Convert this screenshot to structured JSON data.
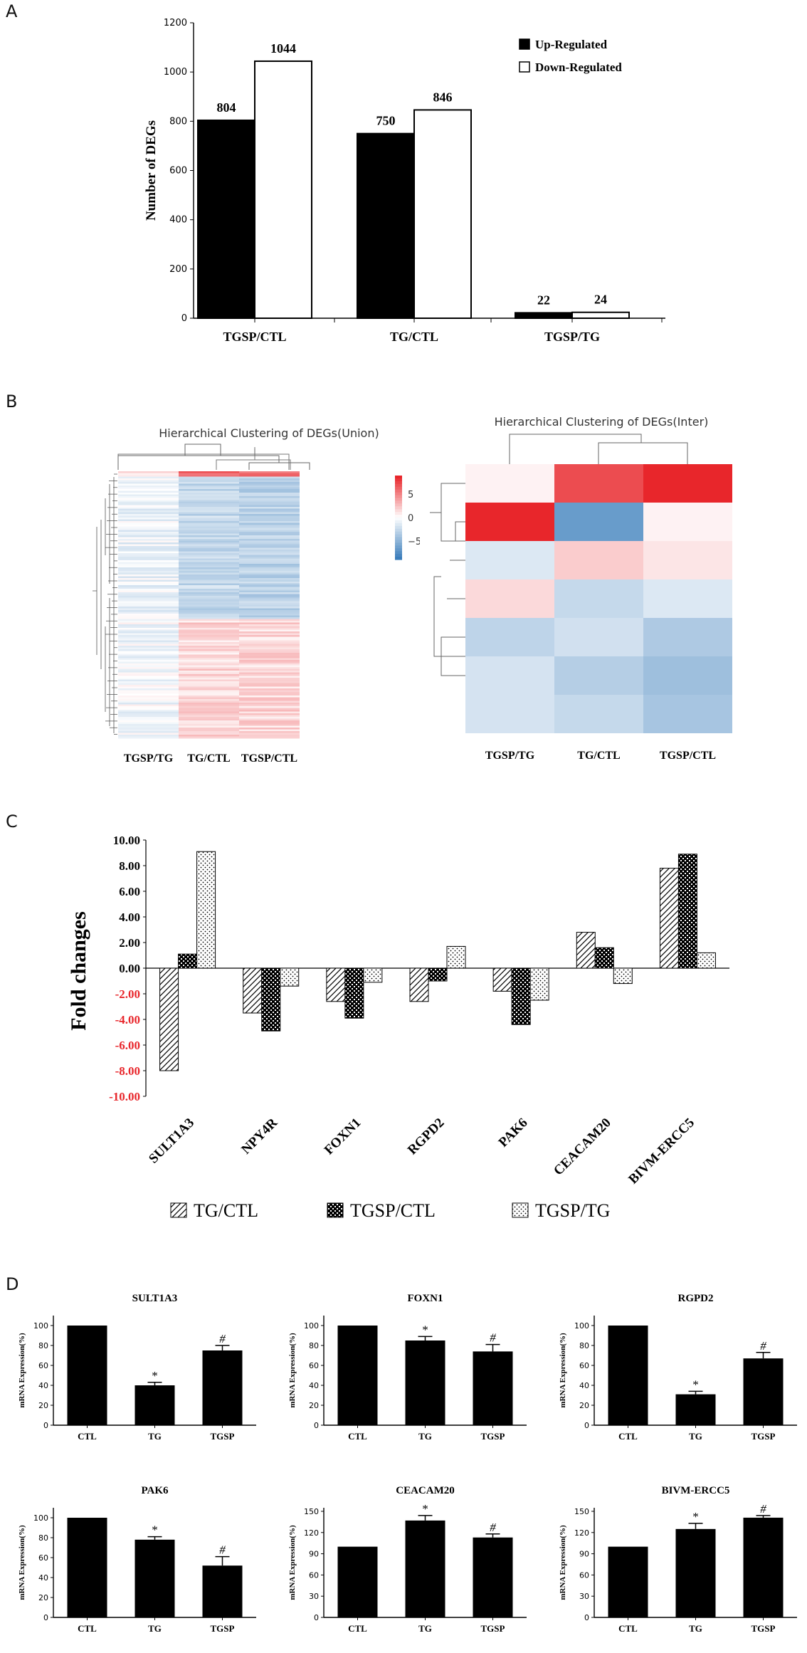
{
  "panels": {
    "a": {
      "letter": "A"
    },
    "b": {
      "letter": "B"
    },
    "c": {
      "letter": "C"
    },
    "d": {
      "letter": "D"
    }
  },
  "chart_data": [
    {
      "id": "A",
      "type": "bar",
      "ylabel": "Number of  DEGs",
      "categories": [
        "TGSP/CTL",
        "TG/CTL",
        "TGSP/TG"
      ],
      "series": [
        {
          "name": "Up-Regulated",
          "values": [
            804,
            750,
            22
          ],
          "color": "#000000"
        },
        {
          "name": "Down-Regulated",
          "values": [
            1044,
            846,
            24
          ],
          "color": "#ffffff"
        }
      ],
      "ylim": [
        0,
        1200
      ],
      "yticks": [
        0,
        200,
        400,
        600,
        800,
        1000,
        1200
      ],
      "legend": "top-right"
    },
    {
      "id": "B1",
      "type": "heatmap",
      "title": "Hierarchical Clustering of DEGs(Union)",
      "columns": [
        "TGSP/TG",
        "TG/CTL",
        "TGSP/CTL"
      ],
      "colorbar_ticks": [
        "5",
        "0",
        "−5"
      ],
      "colors": {
        "high": "#e8262b",
        "mid": "#ffffff",
        "low": "#3a7dbb"
      }
    },
    {
      "id": "B2",
      "type": "heatmap",
      "title": "Hierarchical Clustering of DEGs(Inter)",
      "columns": [
        "TGSP/TG",
        "TG/CTL",
        "TGSP/CTL"
      ],
      "rows": 7,
      "values": [
        [
          0.5,
          7.0,
          8.5
        ],
        [
          8.5,
          -6.5,
          0.5
        ],
        [
          -1.5,
          2.0,
          1.0
        ],
        [
          1.5,
          -2.5,
          -1.5
        ],
        [
          -2.8,
          -2.0,
          -3.5
        ],
        [
          -1.8,
          -3.2,
          -4.2
        ],
        [
          -1.8,
          -2.5,
          -3.8
        ]
      ],
      "colorbar_ticks": [
        "5",
        "0",
        "−5"
      ]
    },
    {
      "id": "C",
      "type": "bar",
      "ylabel": "Fold changes",
      "categories": [
        "SULT1A3",
        "NPY4R",
        "FOXN1",
        "RGPD2",
        "PAK6",
        "CEACAM20",
        "BIVM-ERCC5"
      ],
      "series": [
        {
          "name": "TG/CTL",
          "values": [
            -8.0,
            -3.5,
            -2.6,
            -2.6,
            -1.8,
            2.8,
            7.8
          ],
          "pattern": "hatch"
        },
        {
          "name": "TGSP/CTL",
          "values": [
            1.1,
            -4.9,
            -3.9,
            -1.0,
            -4.4,
            1.6,
            8.9
          ],
          "pattern": "checker"
        },
        {
          "name": "TGSP/TG",
          "values": [
            9.1,
            -1.4,
            -1.1,
            1.7,
            -2.5,
            -1.2,
            1.2
          ],
          "pattern": "dots"
        }
      ],
      "ylim": [
        -10,
        10
      ],
      "yticks": [
        "10.00",
        "8.00",
        "6.00",
        "4.00",
        "2.00",
        "0.00",
        "-2.00",
        "-4.00",
        "-6.00",
        "-8.00",
        "-10.00"
      ],
      "negative_tick_color": "#e8262b",
      "legend": "bottom"
    },
    {
      "id": "D1",
      "type": "bar",
      "title": "SULT1A3",
      "ylabel": "mRNA Expression(%)",
      "categories": [
        "CTL",
        "TG",
        "TGSP"
      ],
      "values": [
        100,
        40,
        75
      ],
      "errors": [
        0,
        3,
        5
      ],
      "marks": [
        "",
        "*",
        "#"
      ],
      "ylim": [
        0,
        110
      ],
      "yticks": [
        0,
        20,
        40,
        60,
        80,
        100
      ]
    },
    {
      "id": "D2",
      "type": "bar",
      "title": "FOXN1",
      "ylabel": "mRNA Expression(%)",
      "categories": [
        "CTL",
        "TG",
        "TGSP"
      ],
      "values": [
        100,
        85,
        74
      ],
      "errors": [
        0,
        4,
        7
      ],
      "marks": [
        "",
        "*",
        "#"
      ],
      "ylim": [
        0,
        110
      ],
      "yticks": [
        0,
        20,
        40,
        60,
        80,
        100
      ]
    },
    {
      "id": "D3",
      "type": "bar",
      "title": "RGPD2",
      "ylabel": "mRNA Expression(%)",
      "categories": [
        "CTL",
        "TG",
        "TGSP"
      ],
      "values": [
        100,
        31,
        67
      ],
      "errors": [
        0,
        3,
        6
      ],
      "marks": [
        "",
        "*",
        "#"
      ],
      "ylim": [
        0,
        110
      ],
      "yticks": [
        0,
        20,
        40,
        60,
        80,
        100
      ]
    },
    {
      "id": "D4",
      "type": "bar",
      "title": "PAK6",
      "ylabel": "mRNA Expression(%)",
      "categories": [
        "CTL",
        "TG",
        "TGSP"
      ],
      "values": [
        100,
        78,
        52
      ],
      "errors": [
        0,
        3,
        9
      ],
      "marks": [
        "",
        "*",
        "#"
      ],
      "ylim": [
        0,
        110
      ],
      "yticks": [
        0,
        20,
        40,
        60,
        80,
        100
      ]
    },
    {
      "id": "D5",
      "type": "bar",
      "title": "CEACAM20",
      "ylabel": "mRNA Expression(%)",
      "categories": [
        "CTL",
        "TG",
        "TGSP"
      ],
      "values": [
        100,
        137,
        113
      ],
      "errors": [
        0,
        7,
        5
      ],
      "marks": [
        "",
        "*",
        "#"
      ],
      "ylim": [
        0,
        155
      ],
      "yticks": [
        0,
        30,
        60,
        90,
        120,
        150
      ]
    },
    {
      "id": "D6",
      "type": "bar",
      "title": "BIVM-ERCC5",
      "ylabel": "mRNA Expression(%)",
      "categories": [
        "CTL",
        "TG",
        "TGSP"
      ],
      "values": [
        100,
        125,
        141
      ],
      "errors": [
        0,
        8,
        3
      ],
      "marks": [
        "",
        "*",
        "#"
      ],
      "ylim": [
        0,
        155
      ],
      "yticks": [
        0,
        30,
        60,
        90,
        120,
        150
      ]
    }
  ]
}
